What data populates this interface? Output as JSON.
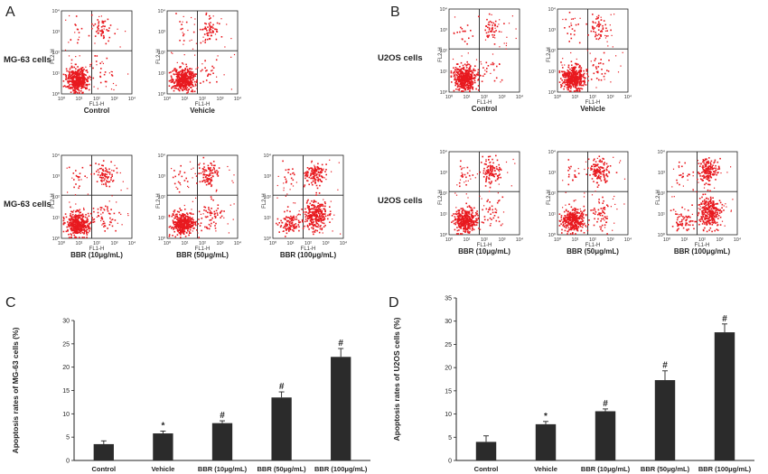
{
  "panels": {
    "A": {
      "letter": "A",
      "rows": [
        "MG-63 cells",
        "MG-63 cells"
      ],
      "plots": [
        {
          "label": "Control",
          "upper_right": 0.1,
          "lower_left": 0.85,
          "lower_right": 0.03,
          "upper_left": 0.02
        },
        {
          "label": "Vehicle",
          "upper_right": 0.12,
          "lower_left": 0.82,
          "lower_right": 0.04,
          "upper_left": 0.02
        },
        {
          "label": "BBR (10μg/mL)",
          "upper_right": 0.14,
          "lower_left": 0.75,
          "lower_right": 0.08,
          "upper_left": 0.03
        },
        {
          "label": "BBR (50μg/mL)",
          "upper_right": 0.18,
          "lower_left": 0.68,
          "lower_right": 0.11,
          "upper_left": 0.03
        },
        {
          "label": "BBR (100μg/mL)",
          "upper_right": 0.25,
          "lower_left": 0.2,
          "lower_right": 0.52,
          "upper_left": 0.03
        }
      ]
    },
    "B": {
      "letter": "B",
      "rows": [
        "U2OS cells",
        "U2OS cells"
      ],
      "plots": [
        {
          "label": "Control",
          "upper_right": 0.08,
          "lower_left": 0.86,
          "lower_right": 0.03,
          "upper_left": 0.03
        },
        {
          "label": "Vehicle",
          "upper_right": 0.1,
          "lower_left": 0.82,
          "lower_right": 0.05,
          "upper_left": 0.03
        },
        {
          "label": "BBR (10μg/mL)",
          "upper_right": 0.2,
          "lower_left": 0.7,
          "lower_right": 0.07,
          "upper_left": 0.03
        },
        {
          "label": "BBR (50μg/mL)",
          "upper_right": 0.25,
          "lower_left": 0.62,
          "lower_right": 0.1,
          "upper_left": 0.03
        },
        {
          "label": "BBR (100μg/mL)",
          "upper_right": 0.3,
          "lower_left": 0.12,
          "lower_right": 0.55,
          "upper_left": 0.03
        }
      ]
    }
  },
  "flow_axes": {
    "x_label": "FL1-H",
    "y_label": "FL2-H",
    "ticks": [
      "10⁰",
      "10¹",
      "10²",
      "10³",
      "10⁴"
    ]
  },
  "chart_data": [
    {
      "type": "bar",
      "letter": "C",
      "categories": [
        "Control",
        "Vehicle",
        "BBR (10μg/mL)",
        "BBR (50μg/mL)",
        "BBR (100μg/mL)"
      ],
      "values": [
        3.5,
        5.8,
        8.0,
        13.5,
        22.2
      ],
      "errors": [
        0.7,
        0.5,
        0.5,
        1.2,
        1.8
      ],
      "marks": [
        "",
        "*",
        "#",
        "#",
        "#"
      ],
      "ylabel": "Apoptosis rates of MG-63 cells (%)",
      "ylim": [
        0,
        30
      ],
      "yticks": [
        0,
        5,
        10,
        15,
        20,
        25,
        30
      ],
      "color": "#2b2b2b"
    },
    {
      "type": "bar",
      "letter": "D",
      "categories": [
        "Control",
        "Vehicle",
        "BBR (10μg/mL)",
        "BBR (50μg/mL)",
        "BBR (100μg/mL)"
      ],
      "values": [
        4.0,
        7.8,
        10.6,
        17.3,
        27.6
      ],
      "errors": [
        1.3,
        0.6,
        0.5,
        2.0,
        1.8
      ],
      "marks": [
        "",
        "*",
        "#",
        "#",
        "#"
      ],
      "ylabel": "Apoptosis rates of U2OS cells (%)",
      "ylim": [
        0,
        35
      ],
      "yticks": [
        0,
        5,
        10,
        15,
        20,
        25,
        30,
        35
      ],
      "color": "#2b2b2b"
    }
  ],
  "colors": {
    "dots": "#e8191f",
    "ink": "#222222"
  }
}
